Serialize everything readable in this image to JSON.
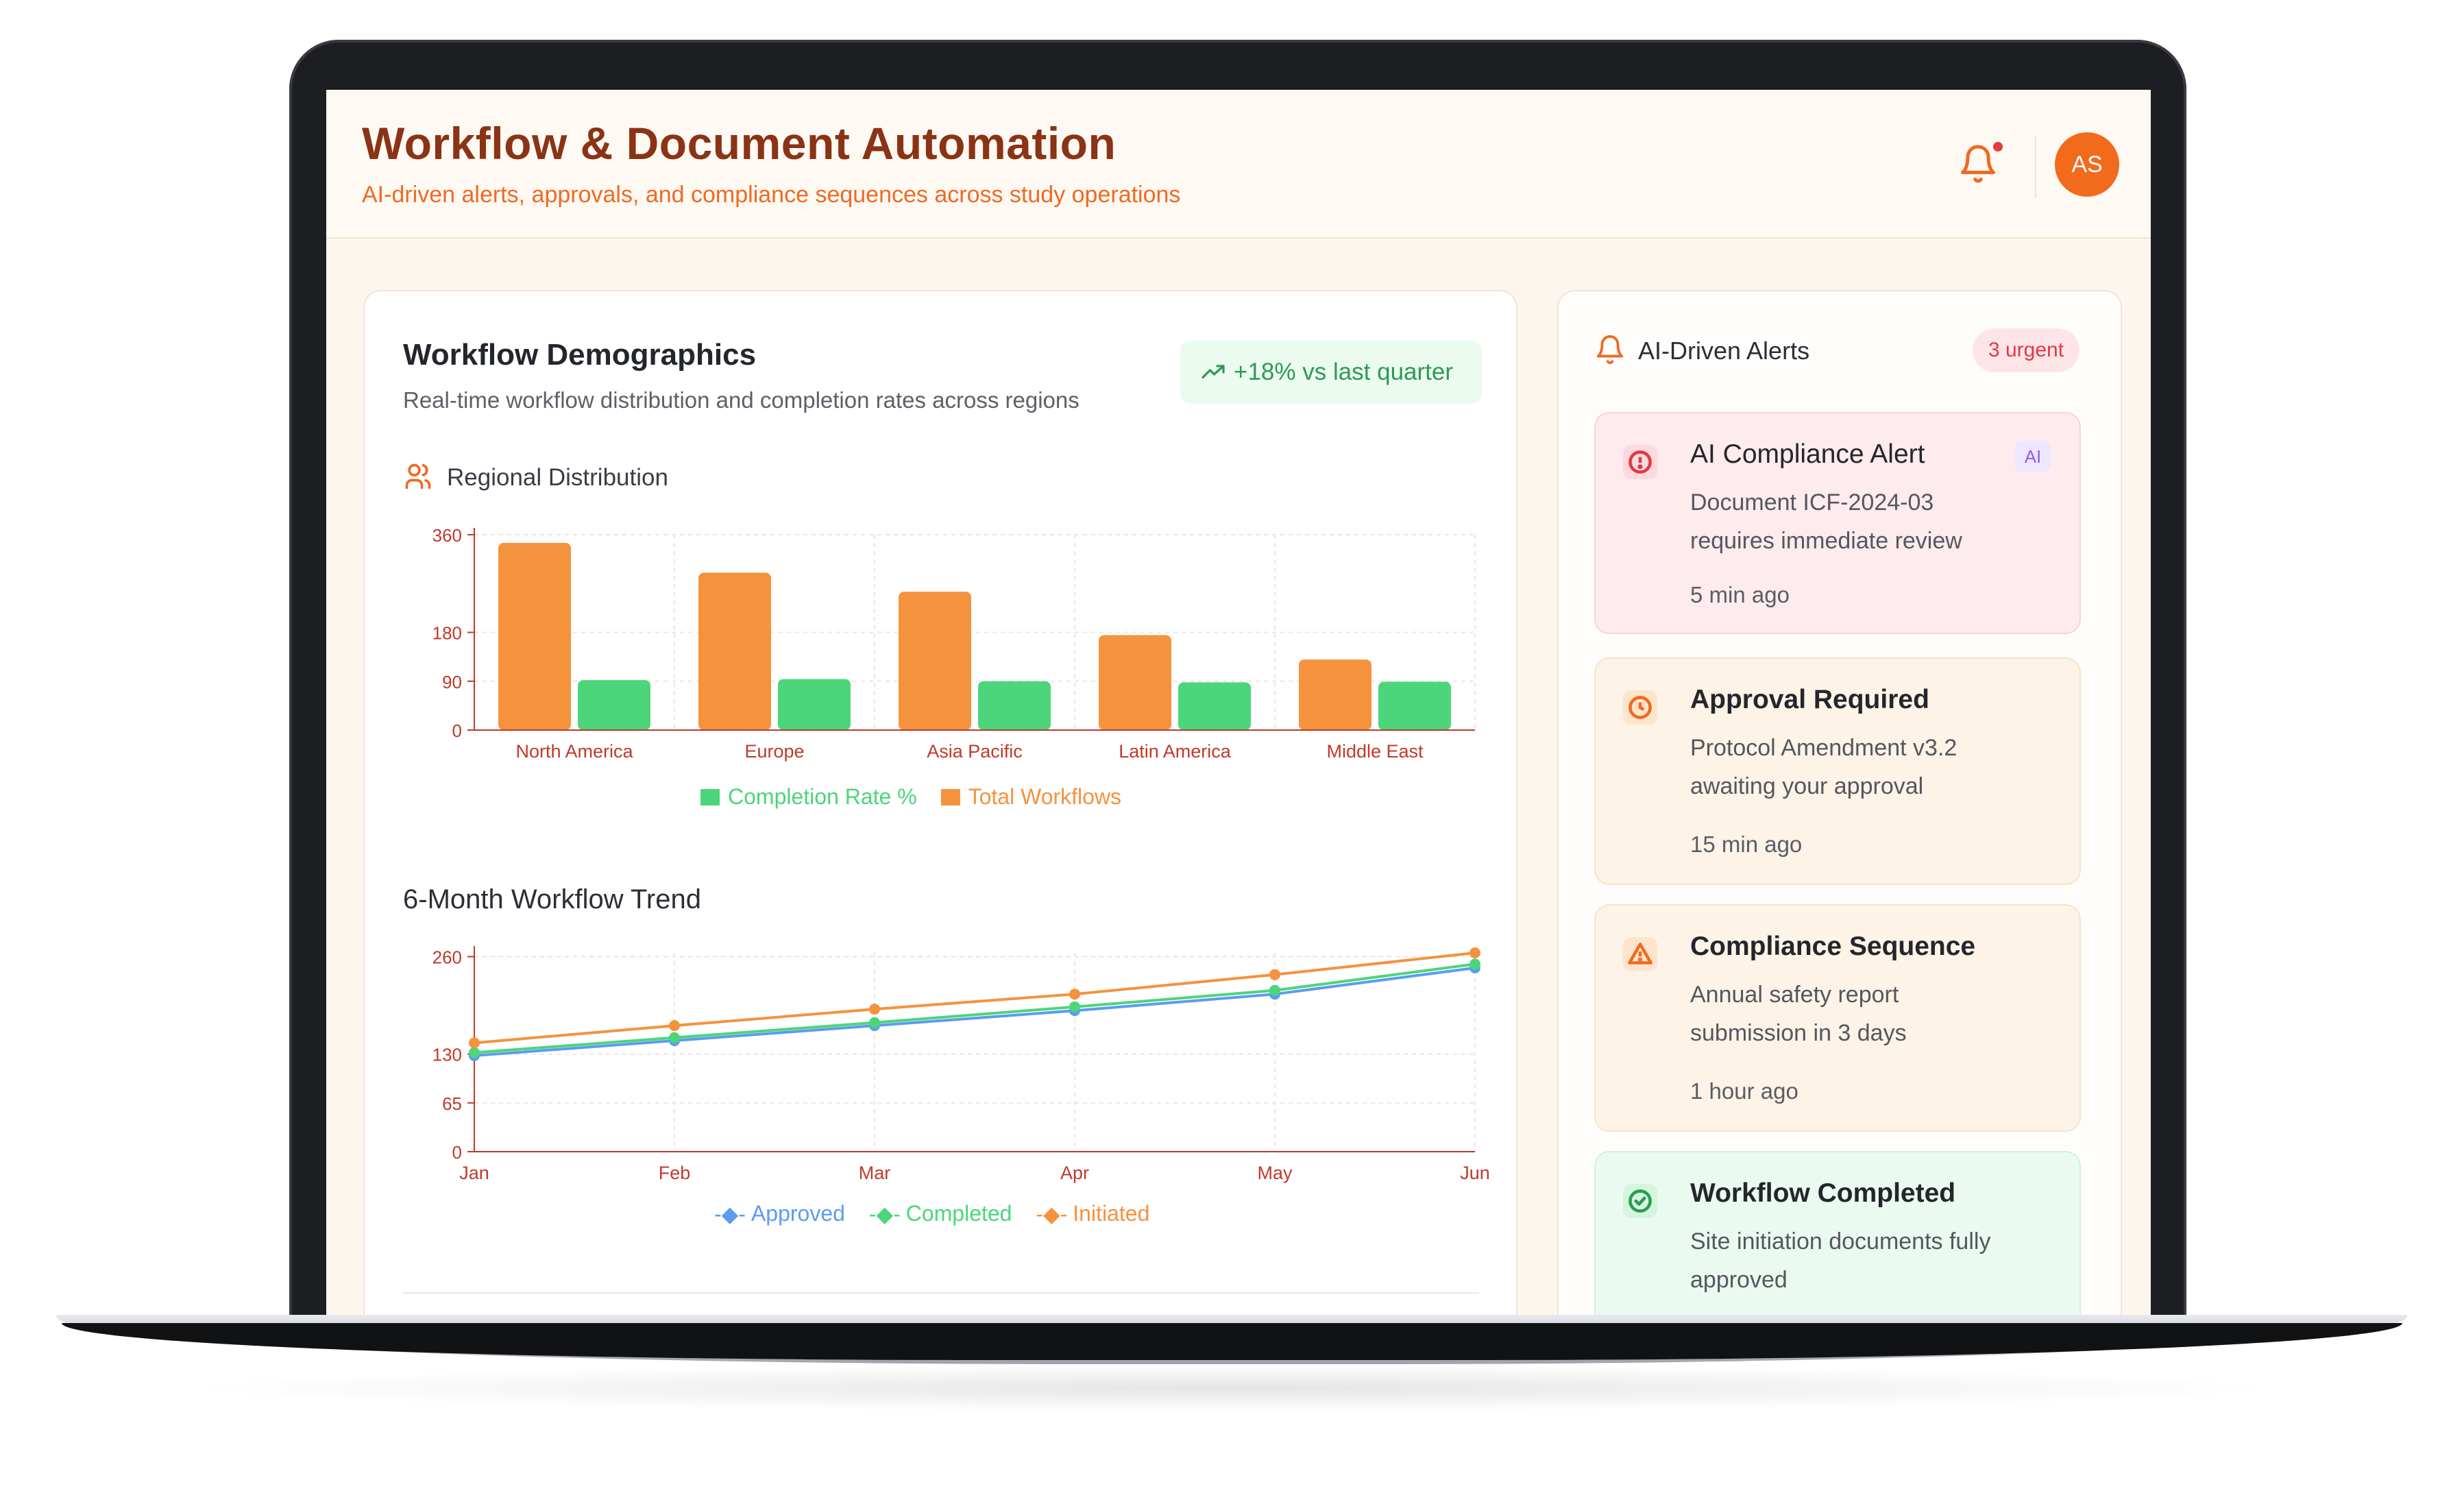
{
  "header": {
    "title": "Workflow & Document Automation",
    "subtitle": "AI-driven alerts, approvals, and compliance sequences across study operations",
    "avatar_initials": "AS"
  },
  "demographics": {
    "title": "Workflow Demographics",
    "subtitle": "Real-time workflow distribution and completion rates across regions",
    "trend_badge": "+18% vs last quarter",
    "regional_label": "Regional Distribution",
    "trend_label": "6-Month Workflow Trend"
  },
  "colors": {
    "orange": "#f5923e",
    "green": "#4cd57a",
    "blue": "#5b9cf0",
    "axis": "#c0392b"
  },
  "chart_data": [
    {
      "type": "bar",
      "title": "Regional Distribution",
      "categories": [
        "North America",
        "Europe",
        "Asia Pacific",
        "Latin America",
        "Middle East"
      ],
      "series": [
        {
          "name": "Total Workflows",
          "values": [
            345,
            290,
            255,
            175,
            130
          ],
          "color": "#f5923e"
        },
        {
          "name": "Completion Rate %",
          "values": [
            92,
            94,
            90,
            88,
            89
          ],
          "color": "#4cd57a"
        }
      ],
      "yticks": [
        "0",
        "90",
        "180",
        "360"
      ],
      "ylim": [
        0,
        360
      ],
      "legend": [
        "Completion Rate %",
        "Total Workflows"
      ],
      "legend_position": "bottom",
      "grid": true
    },
    {
      "type": "line",
      "title": "6-Month Workflow Trend",
      "categories": [
        "Jan",
        "Feb",
        "Mar",
        "Apr",
        "May",
        "Jun"
      ],
      "series": [
        {
          "name": "Approved",
          "values": [
            128,
            148,
            168,
            188,
            210,
            245
          ],
          "color": "#5b9cf0"
        },
        {
          "name": "Completed",
          "values": [
            132,
            152,
            172,
            193,
            215,
            250
          ],
          "color": "#4cd57a"
        },
        {
          "name": "Initiated",
          "values": [
            145,
            168,
            190,
            210,
            236,
            265
          ],
          "color": "#f5923e"
        }
      ],
      "yticks": [
        "0",
        "65",
        "130",
        "260"
      ],
      "ylim": [
        0,
        265
      ],
      "legend": [
        "Approved",
        "Completed",
        "Initiated"
      ],
      "legend_position": "bottom",
      "grid": true
    }
  ],
  "alerts": {
    "title": "AI-Driven Alerts",
    "urgent_badge": "3 urgent",
    "items": [
      {
        "title": "AI Compliance Alert",
        "desc": "Document ICF-2024-03 requires immediate review",
        "time": "5 min ago",
        "chip": "AI"
      },
      {
        "title": "Approval Required",
        "desc": "Protocol Amendment v3.2 awaiting your approval",
        "time": "15 min ago"
      },
      {
        "title": "Compliance Sequence",
        "desc": "Annual safety report submission in 3 days",
        "time": "1 hour ago"
      },
      {
        "title": "Workflow Completed",
        "desc": "Site initiation documents fully approved",
        "time": ""
      }
    ]
  }
}
